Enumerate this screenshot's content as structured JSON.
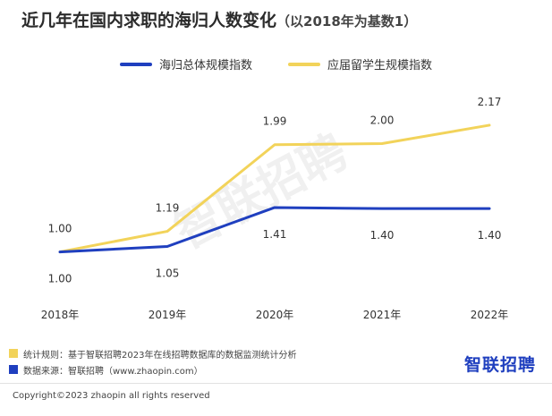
{
  "title": "近几年在国内求职的海归人数变化",
  "subtitle": "（以2018年为基数1）",
  "watermark": "智联招聘",
  "brand_logo": "智联招聘",
  "notes": [
    {
      "text": "统计规则：基于智联招聘2023年在线招聘数据库的数据监测统计分析",
      "color": "#f2d35a"
    },
    {
      "text": "数据来源：智联招聘（www.zhaopin.com）",
      "color": "#1f3fbf"
    }
  ],
  "copyright": "Copyright©2023 zhaopin all rights reserved",
  "chart_data": {
    "type": "line",
    "categories": [
      "2018年",
      "2019年",
      "2020年",
      "2021年",
      "2022年"
    ],
    "series": [
      {
        "name": "海归总体规模指数",
        "values": [
          1.0,
          1.05,
          1.41,
          1.4,
          1.4
        ],
        "labels": [
          "1.00",
          "1.05",
          "1.41",
          "1.40",
          "1.40"
        ],
        "color": "#1f3fbf"
      },
      {
        "name": "应届留学生规模指数",
        "values": [
          1.0,
          1.19,
          1.99,
          2.0,
          2.17
        ],
        "labels": [
          "1.00",
          "1.19",
          "1.99",
          "2.00",
          "2.17"
        ],
        "color": "#f2d35a"
      }
    ],
    "ylim": [
      0.6,
      2.5
    ],
    "grid": false,
    "legend": "top-center"
  }
}
